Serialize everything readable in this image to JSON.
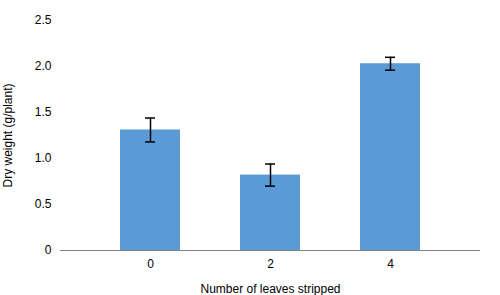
{
  "chart_data": {
    "type": "bar",
    "categories": [
      "0",
      "2",
      "4"
    ],
    "values": [
      1.31,
      0.82,
      2.03
    ],
    "errors": [
      0.13,
      0.12,
      0.07
    ],
    "color": "#5B9BD5",
    "xlabel": "Number of leaves stripped",
    "ylabel": "Dry weight (g/plant)",
    "ylim": [
      0,
      2.5
    ],
    "yticks": [
      0,
      0.5,
      {
        "value": 1,
        "label": "1.0"
      },
      1.5,
      {
        "value": 2,
        "label": "2.0"
      },
      2.5
    ],
    "grid": false
  }
}
